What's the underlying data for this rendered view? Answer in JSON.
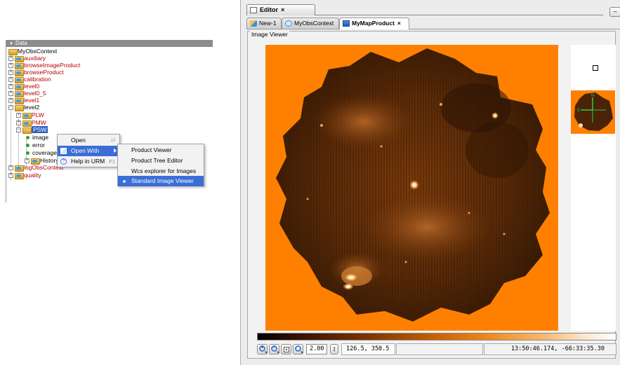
{
  "tree": {
    "header": "Data",
    "root": "MyObsContext",
    "items": [
      {
        "label": "auxiliary"
      },
      {
        "label": "browseImageProduct"
      },
      {
        "label": "browseProduct"
      },
      {
        "label": "calibration"
      },
      {
        "label": "level0"
      },
      {
        "label": "level0_5"
      },
      {
        "label": "level1"
      },
      {
        "label": "level2"
      },
      {
        "label": "PLW"
      },
      {
        "label": "PMW"
      },
      {
        "label": "PSW"
      },
      {
        "label": "image"
      },
      {
        "label": "error"
      },
      {
        "label": "coverage"
      },
      {
        "label": "History"
      },
      {
        "label": "logObsContext"
      },
      {
        "label": "quality"
      }
    ]
  },
  "context_menu": {
    "open": "Open",
    "open_shortcut": "⏎",
    "open_with": "Open With",
    "help": "Help in URM",
    "help_shortcut": "F1"
  },
  "submenu": {
    "items": [
      "Product Viewer",
      "Product Tree Editor",
      "Wcs explorer for Images",
      "Standard Image Viewer"
    ]
  },
  "editor": {
    "title": "Editor",
    "close": "×",
    "minimize": "–",
    "tabs": [
      {
        "label": "New-1"
      },
      {
        "label": "MyObsContext"
      },
      {
        "label": "MyMapProduct"
      }
    ],
    "viewer_title": "Image Viewer",
    "zoom": "2.00",
    "pixel_coords": "126.5, 350.5",
    "wcs_coords": "13:50:46.174, -66:33:35.30"
  },
  "colors": {
    "image_bg": "#ff8000",
    "selection": "#3b6ed6",
    "tree_red": "#b80000"
  }
}
